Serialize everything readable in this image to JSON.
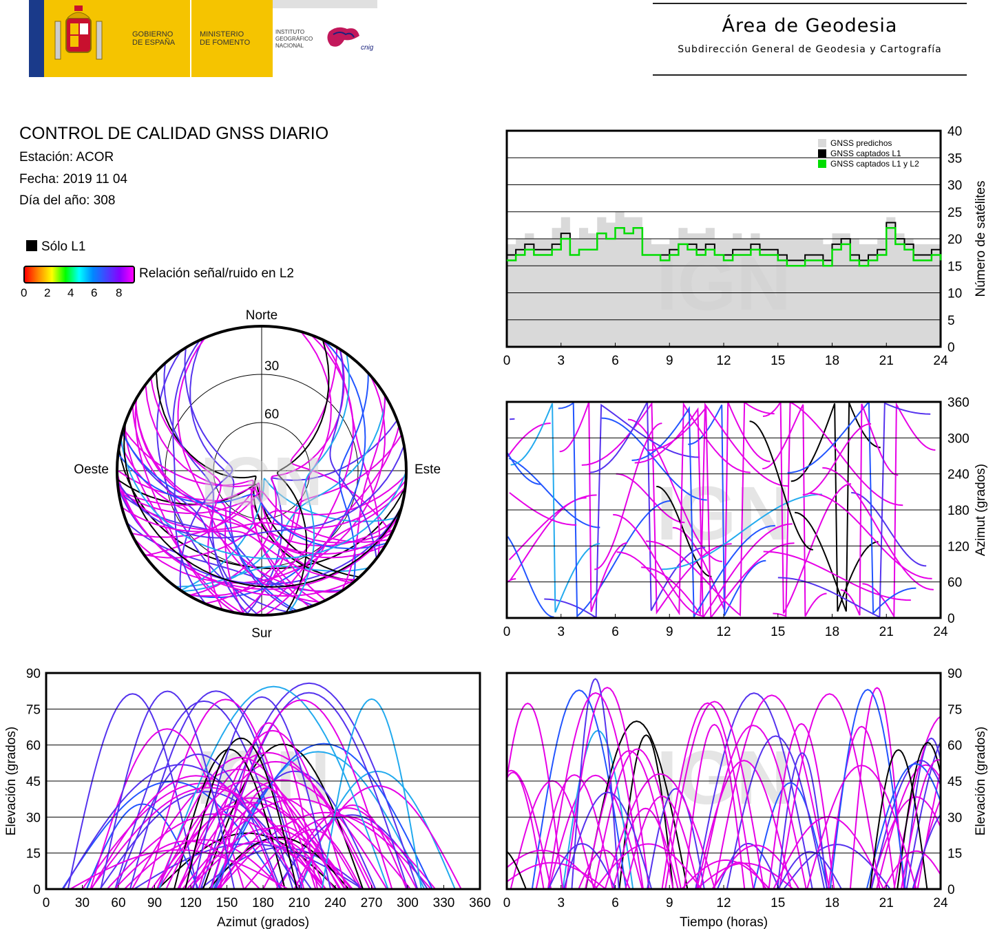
{
  "header": {
    "gov_line1": "GOBIERNO",
    "gov_line2": "DE ESPAÑA",
    "min_line1": "MINISTERIO",
    "min_line2": "DE FOMENTO",
    "inst_line1": "INSTITUTO",
    "inst_line2": "GEOGRÁFICO",
    "inst_line3": "NACIONAL",
    "cnig": "cnig",
    "area_title": "Área de Geodesia",
    "area_subtitle": "Subdirección General de Geodesia y Cartografía"
  },
  "info": {
    "title": "CONTROL DE CALIDAD GNSS DIARIO",
    "station": "Estación: ACOR",
    "date": "Fecha: 2019 11 04",
    "doy": "Día del año: 308"
  },
  "legend": {
    "only_l1": "Sólo L1",
    "snr_label": "Relación señal/ruido en L2",
    "snr_ticks": [
      "0",
      "2",
      "4",
      "6",
      "8"
    ],
    "gradient": [
      "#ff0000",
      "#ff8800",
      "#ffff00",
      "#00ff00",
      "#00ffff",
      "#0088ff",
      "#4444ff",
      "#8800ff",
      "#ff00ff"
    ]
  },
  "skyplot": {
    "north": "Norte",
    "south": "Sur",
    "east": "Este",
    "west": "Oeste",
    "ring_labels": [
      "30",
      "60"
    ]
  },
  "watermark": "IGN",
  "colors": {
    "track_main": "#e600e6",
    "track_low": "#5533ee",
    "track_blue": "#2255ff",
    "track_cyan": "#22aaee",
    "only_l1": "#000000",
    "predicted_fill": "#d9d9d9",
    "captured_l1l2": "#00dd00"
  },
  "chart_data": [
    {
      "type": "area",
      "id": "satellites",
      "ylabel": "Número de satélites",
      "xlim": [
        0,
        24
      ],
      "ylim": [
        0,
        40
      ],
      "xticks": [
        "0",
        "3",
        "6",
        "9",
        "12",
        "15",
        "18",
        "21",
        "24"
      ],
      "yticks": [
        "0",
        "5",
        "10",
        "15",
        "20",
        "25",
        "30",
        "35",
        "40"
      ],
      "grid": true,
      "legend_position": "top-right",
      "x": [
        0,
        0.5,
        1,
        1.5,
        2,
        2.5,
        3,
        3.5,
        4,
        4.5,
        5,
        5.5,
        6,
        6.5,
        7,
        7.5,
        8,
        8.5,
        9,
        9.5,
        10,
        10.5,
        11,
        11.5,
        12,
        12.5,
        13,
        13.5,
        14,
        14.5,
        15,
        15.5,
        16,
        16.5,
        17,
        17.5,
        18,
        18.5,
        19,
        19.5,
        20,
        20.5,
        21,
        21.5,
        22,
        22.5,
        23,
        23.5,
        24
      ],
      "series": [
        {
          "name": "GNSS predichos",
          "values": [
            19,
            20,
            21,
            20,
            20,
            22,
            24,
            20,
            22,
            21,
            24,
            23,
            25,
            24,
            24,
            20,
            19,
            19,
            20,
            22,
            21,
            21,
            22,
            20,
            20,
            21,
            20,
            21,
            20,
            20,
            20,
            20,
            20,
            20,
            20,
            19,
            21,
            21,
            20,
            19,
            19,
            20,
            24,
            21,
            20,
            19,
            19,
            19,
            19
          ]
        },
        {
          "name": "GNSS captados L1",
          "values": [
            17,
            18,
            19,
            18,
            18,
            19,
            21,
            17,
            18,
            18,
            21,
            20,
            22,
            21,
            22,
            17,
            17,
            17,
            18,
            19,
            19,
            18,
            19,
            17,
            17,
            18,
            18,
            19,
            18,
            18,
            17,
            16,
            16,
            17,
            17,
            16,
            19,
            20,
            17,
            16,
            17,
            18,
            23,
            20,
            19,
            17,
            17,
            18,
            17
          ]
        },
        {
          "name": "GNSS captados L1 y L2",
          "values": [
            16,
            17,
            18,
            17,
            17,
            18,
            20,
            17,
            18,
            18,
            21,
            20,
            22,
            21,
            22,
            17,
            17,
            16,
            17,
            19,
            18,
            17,
            18,
            17,
            16,
            17,
            17,
            18,
            17,
            17,
            16,
            15,
            15,
            16,
            16,
            15,
            18,
            19,
            16,
            15,
            16,
            17,
            22,
            19,
            18,
            16,
            16,
            17,
            16
          ]
        }
      ]
    },
    {
      "type": "scatter",
      "id": "azimuth_time",
      "ylabel": "Azimut (grados)",
      "xlim": [
        0,
        24
      ],
      "ylim": [
        0,
        360
      ],
      "xticks": [
        "0",
        "3",
        "6",
        "9",
        "12",
        "15",
        "18",
        "21",
        "24"
      ],
      "yticks": [
        "0",
        "60",
        "120",
        "180",
        "240",
        "300",
        "360"
      ],
      "grid": true
    },
    {
      "type": "scatter",
      "id": "elevation_azimuth",
      "xlabel": "Azimut (grados)",
      "ylabel": "Elevación (grados)",
      "xlim": [
        0,
        360
      ],
      "ylim": [
        0,
        90
      ],
      "xticks": [
        "0",
        "30",
        "60",
        "90",
        "120",
        "150",
        "180",
        "210",
        "240",
        "270",
        "300",
        "330",
        "360"
      ],
      "yticks": [
        "0",
        "15",
        "30",
        "45",
        "60",
        "75",
        "90"
      ],
      "grid": true
    },
    {
      "type": "line",
      "id": "elevation_time",
      "xlabel": "Tiempo (horas)",
      "ylabel": "Elevación (grados)",
      "xlim": [
        0,
        24
      ],
      "ylim": [
        0,
        90
      ],
      "xticks": [
        "0",
        "3",
        "6",
        "9",
        "12",
        "15",
        "18",
        "21",
        "24"
      ],
      "yticks": [
        "0",
        "15",
        "30",
        "45",
        "60",
        "75",
        "90"
      ],
      "grid": true
    }
  ]
}
